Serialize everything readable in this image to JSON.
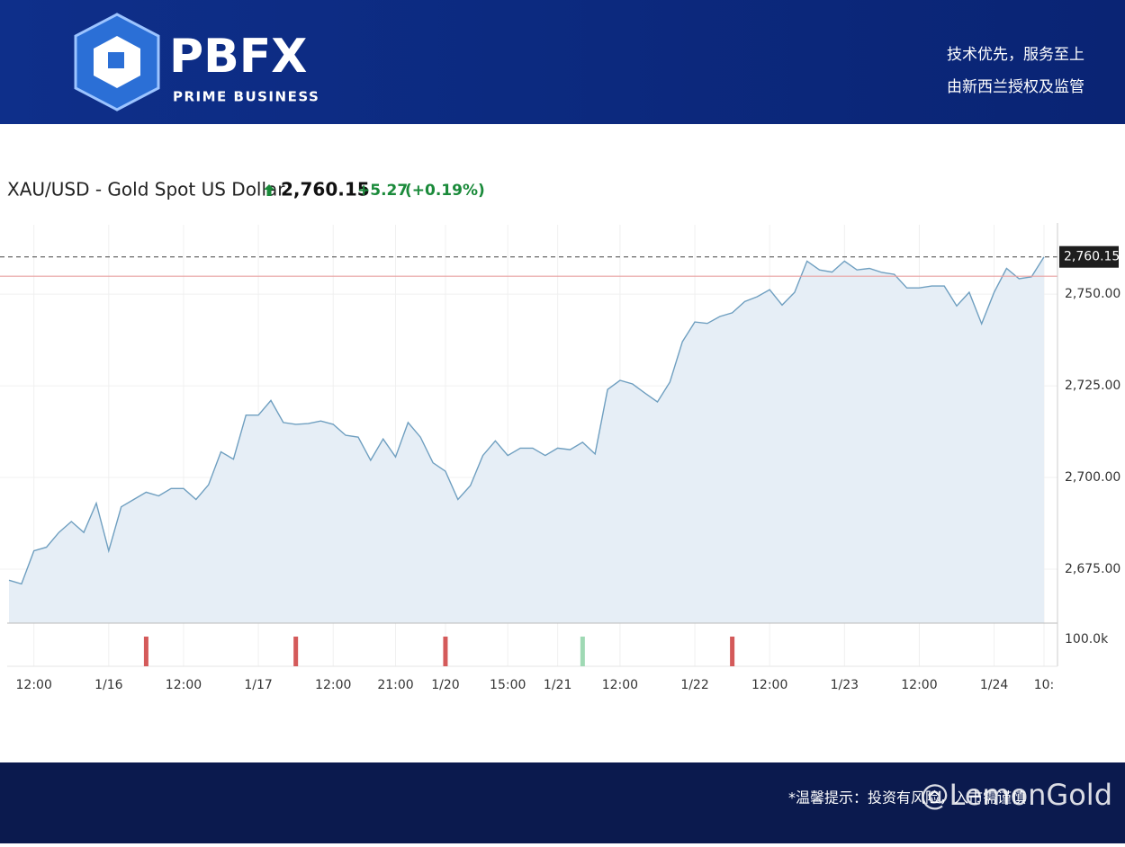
{
  "header": {
    "brand": "PBFX",
    "tagline": "PRIME BUSINESS",
    "slogan": [
      "技术优先，服务至上",
      "由新西兰授权及监管"
    ]
  },
  "footer": {
    "notice": "*温馨提示：投资有风险，入市需谨慎",
    "watermark": "@LemonGold"
  },
  "chart_data": {
    "type": "line",
    "title": "XAU/USD - Gold Spot US Dollar",
    "last_price": {
      "value": 2760.15,
      "label": "2,760.15"
    },
    "change": "+5.27",
    "change_pct": "(+0.19%)",
    "reference_line": 2754.88,
    "color": "#6f9fc0",
    "area_color": "#e6eef6",
    "grid": true,
    "categories": [
      null,
      null,
      "12:00",
      null,
      null,
      null,
      null,
      null,
      "1/16",
      null,
      null,
      null,
      null,
      null,
      "12:00",
      null,
      null,
      null,
      null,
      null,
      "1/17",
      null,
      null,
      null,
      null,
      null,
      "12:00",
      null,
      null,
      null,
      null,
      "21:00",
      null,
      null,
      null,
      "1/20",
      null,
      null,
      null,
      null,
      "15:00",
      null,
      null,
      null,
      "1/21",
      null,
      null,
      null,
      null,
      "12:00",
      null,
      null,
      null,
      null,
      null,
      "1/22",
      null,
      null,
      null,
      null,
      null,
      "12:00",
      null,
      null,
      null,
      null,
      null,
      "1/23",
      null,
      null,
      null,
      null,
      null,
      "12:00",
      null,
      null,
      null,
      null,
      null,
      "1/24",
      null,
      null,
      null,
      "10:"
    ],
    "values": [
      2672,
      2671,
      2680,
      2681,
      2685,
      2688,
      2685,
      2693,
      2680,
      2692,
      2694,
      2696,
      2695,
      2697,
      2697,
      2694,
      2698,
      2707,
      2705,
      2717,
      2717,
      2721,
      2715,
      2714.5,
      2714.7,
      2715.4,
      2714.5,
      2711.5,
      2711,
      2704.7,
      2710.5,
      2705.6,
      2715,
      2711,
      2704,
      2701.7,
      2694,
      2697.8,
      2706,
      2710,
      2706,
      2708,
      2708,
      2706,
      2708,
      2707.6,
      2709.6,
      2706.4,
      2724,
      2726.5,
      2725.5,
      2723,
      2720.6,
      2726,
      2737,
      2742.4,
      2742,
      2743.9,
      2744.9,
      2748,
      2749.3,
      2751.2,
      2747,
      2750.5,
      2759,
      2756.6,
      2756,
      2759,
      2756.6,
      2757,
      2755.9,
      2755.4,
      2751.7,
      2751.7,
      2752.2,
      2752.2,
      2746.8,
      2750.5,
      2741.9,
      2750.5,
      2757,
      2754.2,
      2754.7,
      2760.15
    ],
    "ylim": [
      2660.3,
      2768.9
    ],
    "yticks": [
      {
        "value": 2675,
        "label": "2,675.00"
      },
      {
        "value": 2700,
        "label": "2,700.00"
      },
      {
        "value": 2725,
        "label": "2,725.00"
      },
      {
        "value": 2750,
        "label": "2,750.00"
      }
    ],
    "volume": {
      "values": [
        null,
        null,
        null,
        null,
        null,
        null,
        null,
        null,
        null,
        null,
        null,
        110000,
        null,
        null,
        null,
        null,
        null,
        null,
        null,
        null,
        null,
        null,
        null,
        110000,
        null,
        null,
        null,
        null,
        null,
        null,
        null,
        null,
        null,
        null,
        null,
        110000,
        null,
        null,
        null,
        null,
        null,
        null,
        null,
        null,
        null,
        null,
        110000,
        null,
        null,
        null,
        null,
        null,
        null,
        null,
        null,
        null,
        null,
        null,
        110000,
        null,
        null,
        null,
        null,
        null,
        null,
        null,
        null,
        null,
        null,
        null,
        null,
        null,
        null,
        null,
        null,
        null,
        null,
        null,
        null,
        null,
        null,
        null,
        null,
        null
      ],
      "colors": [
        null,
        null,
        null,
        null,
        null,
        null,
        null,
        null,
        null,
        null,
        null,
        "#d45a5a",
        null,
        null,
        null,
        null,
        null,
        null,
        null,
        null,
        null,
        null,
        null,
        "#d45a5a",
        null,
        null,
        null,
        null,
        null,
        null,
        null,
        null,
        null,
        null,
        null,
        "#d45a5a",
        null,
        null,
        null,
        null,
        null,
        null,
        null,
        null,
        null,
        null,
        "#9fd9b4",
        null,
        null,
        null,
        null,
        null,
        null,
        null,
        null,
        null,
        null,
        null,
        "#d45a5a",
        null,
        null,
        null,
        null,
        null,
        null,
        null,
        null,
        null,
        null,
        null,
        null,
        null,
        null,
        null,
        null,
        null,
        null,
        null,
        null,
        null,
        null,
        null,
        null,
        null
      ],
      "ylim": [
        0,
        160000
      ],
      "yticks": [
        {
          "value": 100000,
          "label": "100.0k"
        }
      ]
    }
  }
}
